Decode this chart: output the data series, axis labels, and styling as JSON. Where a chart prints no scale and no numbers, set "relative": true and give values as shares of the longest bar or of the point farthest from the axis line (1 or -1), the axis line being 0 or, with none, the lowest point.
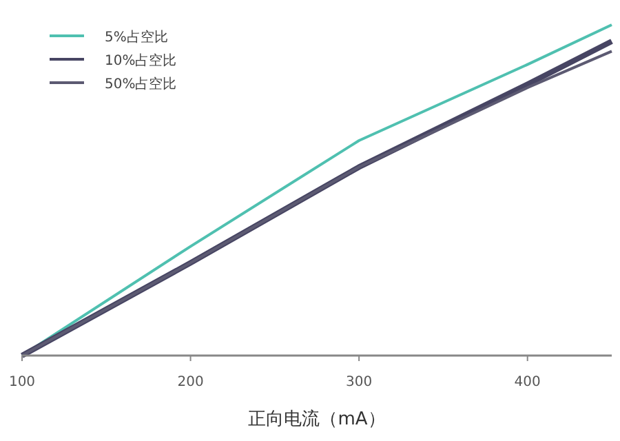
{
  "chart_data": {
    "type": "line",
    "xlabel": "正向电流（mA）",
    "relative": true,
    "x": [
      100,
      200,
      300,
      400,
      450
    ],
    "xlim": [
      100,
      450
    ],
    "xticks": [
      100,
      200,
      300,
      400
    ],
    "legend": "top left",
    "grid": false,
    "series": [
      {
        "name": "5%占空比",
        "color": "#4fc0b0",
        "values": [
          0,
          0.33,
          0.65,
          0.88,
          1
        ]
      },
      {
        "name": "10%占空比",
        "color": "#474563",
        "values": [
          0,
          0.28,
          0.57,
          0.82,
          0.95
        ]
      },
      {
        "name": "50%占空比",
        "color": "#5c5a72",
        "values": [
          0,
          0.28,
          0.57,
          0.81,
          0.92
        ]
      }
    ]
  }
}
